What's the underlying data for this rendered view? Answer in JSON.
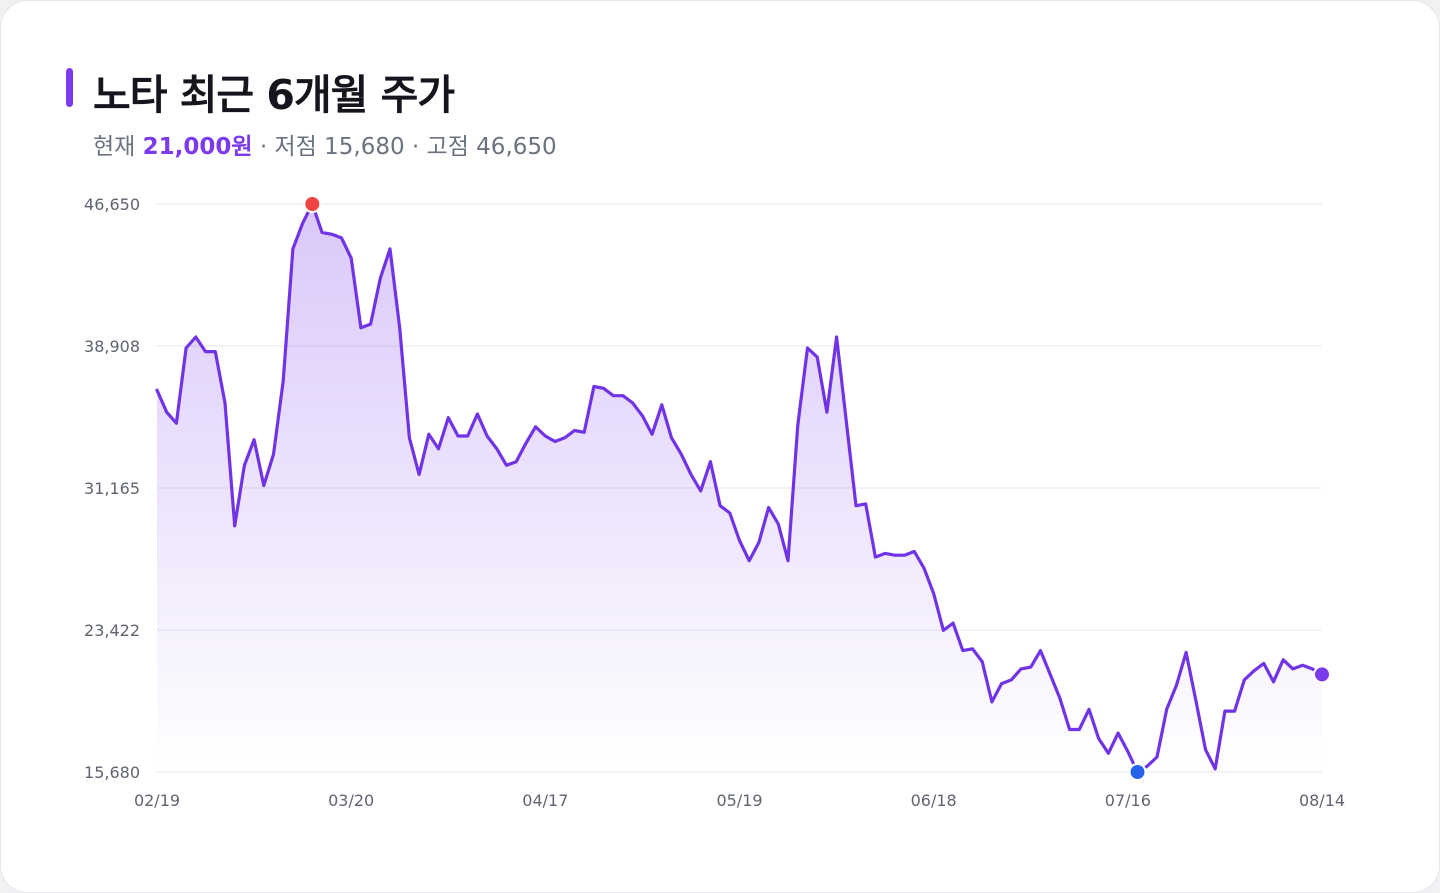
{
  "header": {
    "title": "노타 최근 6개월 주가",
    "current_label": "현재",
    "current_value": "21,000원",
    "low_label": "· 저점 15,680",
    "high_label": "· 고점 46,650"
  },
  "colors": {
    "accent": "#7c3aed",
    "line": "#7133e6",
    "high_marker": "#ef4444",
    "low_marker": "#2563eb",
    "grid": "#e5e7eb"
  },
  "chart_data": {
    "type": "area",
    "title": "노타 최근 6개월 주가",
    "xlabel": "",
    "ylabel": "",
    "ylim": [
      15680,
      46650
    ],
    "yticks": [
      15680,
      23422,
      31165,
      38908,
      46650
    ],
    "ytick_labels": [
      "15,680",
      "23,422",
      "31,165",
      "38,908",
      "46,650"
    ],
    "xtick_labels": [
      "02/19",
      "03/20",
      "04/17",
      "05/19",
      "06/18",
      "07/16",
      "08/14"
    ],
    "xtick_positions": [
      0,
      20,
      40,
      60,
      80,
      100,
      120
    ],
    "grid": true,
    "legend": "none",
    "series": [
      {
        "values": [
          36500,
          35300,
          34700,
          38800,
          39400,
          38600,
          38600,
          35800,
          29100,
          32400,
          33800,
          31300,
          33000,
          37000,
          44200,
          45600,
          46650,
          45100,
          45000,
          44800,
          43700,
          39900,
          40100,
          42600,
          44200,
          39900,
          33900,
          31900,
          34100,
          33300,
          35000,
          34000,
          34000,
          35200,
          34000,
          33300,
          32400,
          32600,
          33600,
          34500,
          34000,
          33700,
          33900,
          34300,
          34200,
          36700,
          36600,
          36200,
          36200,
          35800,
          35100,
          34100,
          35700,
          33900,
          33000,
          31900,
          31000,
          32600,
          30200,
          29800,
          28300,
          27200,
          28200,
          30100,
          29200,
          27200,
          34600,
          38800,
          38300,
          35300,
          39400,
          34800,
          30200,
          30300,
          27400,
          27600,
          27500,
          27500,
          27700,
          26800,
          25400,
          23400,
          23800,
          22300,
          22400,
          21700,
          19500,
          20500,
          20700,
          21300,
          21400,
          22300,
          21000,
          19700,
          18000,
          18000,
          19100,
          17500,
          16700,
          17800,
          16800,
          15680,
          16000,
          16500,
          19100,
          20400,
          22200,
          19600,
          16900,
          15850,
          19000,
          19000,
          20700,
          21200,
          21600,
          20600,
          21800,
          21300,
          21500,
          21300,
          21000
        ]
      }
    ],
    "annotations": [
      {
        "label": "high",
        "index": 16,
        "value": 46650
      },
      {
        "label": "low",
        "index": 101,
        "value": 15680
      },
      {
        "label": "current",
        "index": 120,
        "value": 21000
      }
    ]
  }
}
